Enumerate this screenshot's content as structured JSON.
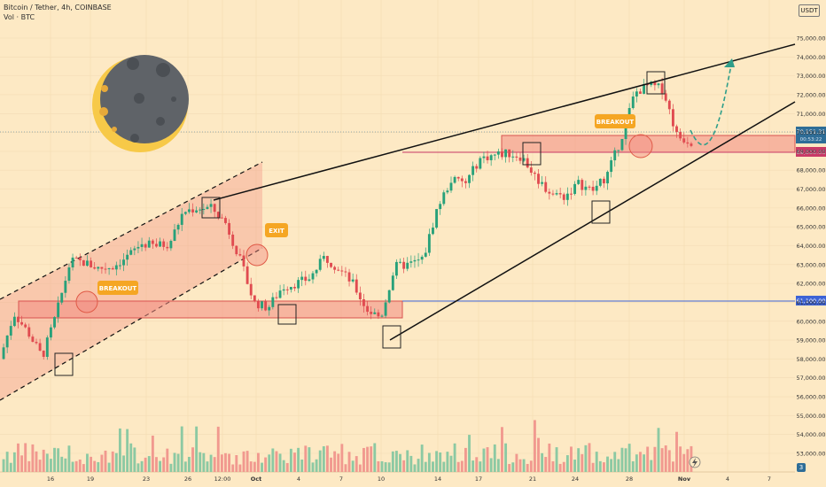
{
  "header": {
    "title": "Bitcoin / Tether, 4h, COINBASE",
    "subtitle": "Vol · BTC"
  },
  "currency_button": "USDT",
  "scale_button": "3",
  "colors": {
    "background": "#fde9c4",
    "up": "#27a17a",
    "down": "#e04b50",
    "zone": "#f08787",
    "line": "#111111",
    "level": "#3d63d6",
    "label": "#f5a623",
    "moon_dark": "#5f6368",
    "moon_light": "#f7c948"
  },
  "chart_data": {
    "type": "candlestick",
    "symbol": "Bitcoin / Tether",
    "interval": "4h",
    "exchange": "COINBASE",
    "ylim": [
      52500,
      76000
    ],
    "y_ticks": [
      "75,000.00",
      "74,000.00",
      "73,000.00",
      "72,000.00",
      "71,000.00",
      "70,000.00",
      "69,000.00",
      "68,000.00",
      "67,000.00",
      "66,000.00",
      "65,000.00",
      "64,000.00",
      "63,000.00",
      "62,000.00",
      "61,000.00",
      "60,000.00",
      "59,000.00",
      "58,000.00",
      "57,000.00",
      "56,000.00",
      "55,000.00",
      "54,000.00",
      "53,000.00"
    ],
    "x_ticks": [
      "16",
      "19",
      "23",
      "26",
      "12:00",
      "Oct",
      "4",
      "7",
      "10",
      "14",
      "17",
      "21",
      "24",
      "28",
      "Nov",
      "4",
      "7"
    ],
    "price_path": [
      [
        "Sep 14",
        58000
      ],
      [
        "Sep 15",
        60400
      ],
      [
        "Sep 16",
        59400
      ],
      [
        "Sep 17",
        58100
      ],
      [
        "Sep 18",
        60400
      ],
      [
        "Sep 19",
        63200
      ],
      [
        "Sep 20",
        63100
      ],
      [
        "Sep 21",
        62800
      ],
      [
        "Sep 22",
        62900
      ],
      [
        "Sep 23",
        63400
      ],
      [
        "Sep 24",
        64100
      ],
      [
        "Sep 25",
        64000
      ],
      [
        "Sep 26",
        64100
      ],
      [
        "Sep 27",
        65800
      ],
      [
        "Sep 28",
        66000
      ],
      [
        "Sep 29",
        66000
      ],
      [
        "Sep 30",
        65200
      ],
      [
        "Oct 1",
        63300
      ],
      [
        "Oct 2",
        61000
      ],
      [
        "Oct 3",
        60700
      ],
      [
        "Oct 4",
        61800
      ],
      [
        "Oct 5",
        62000
      ],
      [
        "Oct 6",
        62300
      ],
      [
        "Oct 7",
        63400
      ],
      [
        "Oct 8",
        62800
      ],
      [
        "Oct 9",
        62000
      ],
      [
        "Oct 10",
        60600
      ],
      [
        "Oct 11",
        60200
      ],
      [
        "Oct 12",
        62900
      ],
      [
        "Oct 13",
        63000
      ],
      [
        "Oct 14",
        63300
      ],
      [
        "Oct 15",
        66000
      ],
      [
        "Oct 16",
        67500
      ],
      [
        "Oct 17",
        67300
      ],
      [
        "Oct 18",
        68600
      ],
      [
        "Oct 19",
        68800
      ],
      [
        "Oct 20",
        68900
      ],
      [
        "Oct 21",
        68700
      ],
      [
        "Oct 22",
        67600
      ],
      [
        "Oct 23",
        66800
      ],
      [
        "Oct 24",
        66600
      ],
      [
        "Oct 25",
        67300
      ],
      [
        "Oct 26",
        66900
      ],
      [
        "Oct 27",
        67700
      ],
      [
        "Oct 28",
        69600
      ],
      [
        "Oct 29",
        72100
      ],
      [
        "Oct 30",
        72500
      ],
      [
        "Oct 31",
        72300
      ],
      [
        "Nov 1",
        69800
      ],
      [
        "Nov 1",
        69500
      ]
    ],
    "levels": [
      {
        "label": "70,151.31",
        "sublabel": "00:53:22",
        "value": 70151.31,
        "color": "#2e6d97"
      },
      {
        "label": "69,000.00",
        "value": 69000,
        "color": "#c93a67"
      },
      {
        "label": "61,100.00",
        "value": 61100,
        "color": "#3d63d6"
      }
    ],
    "zones": [
      {
        "name": "support-zone-upper",
        "from": 69000,
        "to": 70000
      },
      {
        "name": "support-zone-lower",
        "from": 60300,
        "to": 61100
      }
    ],
    "trendlines": [
      "ascending-channel-upper",
      "ascending-channel-lower",
      "rising-wedge-resistance",
      "rising-wedge-support"
    ],
    "annotations": [
      {
        "text": "BREAKOUT",
        "near": "Sep 19"
      },
      {
        "text": "EXIT",
        "near": "Sep 30"
      },
      {
        "text": "BREAKOUT",
        "near": "Oct 28"
      }
    ],
    "volume_series": "Vol · BTC"
  }
}
